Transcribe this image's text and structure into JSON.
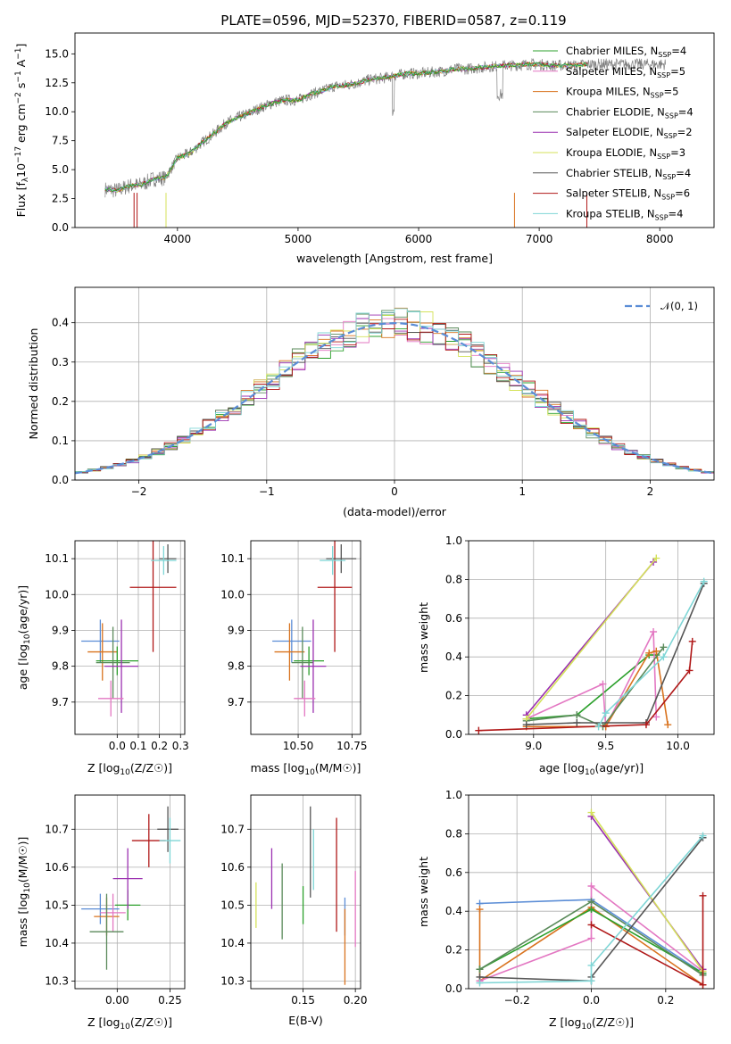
{
  "title": "PLATE=0596, MJD=52370, FIBERID=0587, z=0.119",
  "series_styles": [
    {
      "name": "Chabrier MILES, N_SSP=4",
      "short": "Chabrier MILES, N",
      "n": "=4",
      "color": "#2ca02c"
    },
    {
      "name": "Salpeter MILES, N_SSP=5",
      "short": "Salpeter MILES, N",
      "n": "=5",
      "color": "#e377c2"
    },
    {
      "name": "Kroupa MILES, N_SSP=5",
      "short": "Kroupa MILES, N",
      "n": "=5",
      "color": "#d9731f"
    },
    {
      "name": "Chabrier ELODIE, N_SSP=4",
      "short": "Chabrier ELODIE, N",
      "n": "=4",
      "color": "#5a8a5a"
    },
    {
      "name": "Salpeter ELODIE, N_SSP=2",
      "short": "Salpeter ELODIE, N",
      "n": "=2",
      "color": "#9b30b0"
    },
    {
      "name": "Kroupa ELODIE, N_SSP=3",
      "short": "Kroupa ELODIE, N",
      "n": "=3",
      "color": "#d4e25a"
    },
    {
      "name": "Chabrier STELIB, N_SSP=4",
      "short": "Chabrier STELIB, N",
      "n": "=4",
      "color": "#555555"
    },
    {
      "name": "Salpeter STELIB, N_SSP=6",
      "short": "Salpeter STELIB, N",
      "n": "=6",
      "color": "#b01818"
    },
    {
      "name": "Kroupa STELIB, N_SSP=4",
      "short": "Kroupa STELIB, N",
      "n": "=4",
      "color": "#7fd6d6"
    }
  ],
  "legend_sub": "SSP",
  "chart_data": [
    {
      "id": "spectrum",
      "type": "line",
      "xlabel": "wavelength [Angstrom, rest frame]",
      "ylabel": "Flux [f",
      "ylabel_full": "Flux [f_λ 10^-17 erg cm^-2 s^-1 A^-1]",
      "xlim": [
        3150,
        8450
      ],
      "ylim": [
        0,
        16.8
      ],
      "xticks": [
        4000,
        5000,
        6000,
        7000,
        8000
      ],
      "yticks": [
        0.0,
        2.5,
        5.0,
        7.5,
        10.0,
        12.5,
        15.0
      ],
      "x": [
        3400,
        3500,
        3600,
        3700,
        3800,
        3900,
        4000,
        4100,
        4200,
        4300,
        4400,
        4500,
        4600,
        4700,
        4800,
        4900,
        5000,
        5100,
        5200,
        5300,
        5400,
        5500,
        5600,
        5700,
        5800,
        5900,
        6000,
        6100,
        6200,
        6300,
        6400,
        6500,
        6600,
        6700,
        6800,
        6900,
        7000,
        7100,
        7200,
        7300,
        7400
      ],
      "y": [
        3.3,
        3.2,
        3.6,
        3.7,
        4.2,
        4.3,
        6.0,
        6.4,
        7.3,
        8.1,
        9.0,
        9.5,
        9.9,
        10.4,
        10.8,
        11.0,
        11.0,
        11.5,
        11.8,
        12.2,
        12.3,
        12.5,
        12.8,
        12.9,
        13.1,
        13.3,
        13.3,
        13.4,
        13.5,
        13.7,
        13.7,
        13.8,
        13.9,
        14.0,
        14.0,
        14.1,
        14.1,
        14.0,
        14.0,
        14.0,
        14.1
      ],
      "legend_loc": "upper right"
    },
    {
      "id": "residuals",
      "type": "histogram",
      "xlabel": "(data-model)/error",
      "ylabel": "Normed distribution",
      "xlim": [
        -2.5,
        2.5
      ],
      "ylim": [
        0,
        0.49
      ],
      "xticks": [
        -2,
        -1,
        0,
        1,
        2
      ],
      "yticks": [
        0.0,
        0.1,
        0.2,
        0.3,
        0.4
      ],
      "bin_width": 0.1,
      "reference": {
        "name": "N(0,1)",
        "label": "𝒩(0, 1)",
        "color": "#5b8dd6"
      },
      "legend_loc": "upper right"
    },
    {
      "id": "age_vs_Z",
      "type": "errorbar",
      "xlabel": "Z [log",
      "xlabel_full": "Z [log10(Z/Z☉)]",
      "ylabel": "age  [log",
      "ylabel_full": "age [log10(age/yr)]",
      "xlim": [
        -0.2,
        0.32
      ],
      "ylim": [
        9.61,
        10.15
      ],
      "xticks": [
        0.0,
        0.1,
        0.2,
        0.3
      ],
      "yticks": [
        9.7,
        9.8,
        9.9,
        10.0,
        10.1
      ],
      "points": [
        {
          "c": "#5b8dd6",
          "x": -0.08,
          "xe": 0.09,
          "y": 9.87,
          "ye": 0.06
        },
        {
          "c": "#d9731f",
          "x": -0.07,
          "xe": 0.07,
          "y": 9.84,
          "ye": 0.08
        },
        {
          "c": "#2ca02c",
          "x": 0.0,
          "xe": 0.1,
          "y": 9.815,
          "ye": 0.04
        },
        {
          "c": "#5a8a5a",
          "x": -0.02,
          "xe": 0.08,
          "y": 9.81,
          "ye": 0.1
        },
        {
          "c": "#9b30b0",
          "x": 0.02,
          "xe": 0.08,
          "y": 9.8,
          "ye": 0.13
        },
        {
          "c": "#e377c2",
          "x": -0.03,
          "xe": 0.06,
          "y": 9.71,
          "ye": 0.05
        },
        {
          "c": "#b01818",
          "x": 0.17,
          "xe": 0.11,
          "y": 10.02,
          "ye": 0.18
        },
        {
          "c": "#555555",
          "x": 0.24,
          "xe": 0.04,
          "y": 10.1,
          "ye": 0.04
        },
        {
          "c": "#7fd6d6",
          "x": 0.22,
          "xe": 0.06,
          "y": 10.095,
          "ye": 0.04
        }
      ]
    },
    {
      "id": "age_vs_mass",
      "type": "errorbar",
      "xlabel": "mass [log",
      "xlabel_full": "mass [log10(M/M☉)]",
      "ylabel": "",
      "xlim": [
        10.28,
        10.79
      ],
      "ylim": [
        9.61,
        10.15
      ],
      "xticks": [
        10.5,
        10.75
      ],
      "yticks": [
        9.7,
        9.8,
        9.9,
        10.0,
        10.1
      ],
      "points": [
        {
          "c": "#5b8dd6",
          "x": 10.47,
          "xe": 0.09,
          "y": 9.87,
          "ye": 0.06
        },
        {
          "c": "#d9731f",
          "x": 10.46,
          "xe": 0.07,
          "y": 9.84,
          "ye": 0.08
        },
        {
          "c": "#2ca02c",
          "x": 10.55,
          "xe": 0.07,
          "y": 9.815,
          "ye": 0.04
        },
        {
          "c": "#5a8a5a",
          "x": 10.52,
          "xe": 0.05,
          "y": 9.81,
          "ye": 0.1
        },
        {
          "c": "#9b30b0",
          "x": 10.57,
          "xe": 0.06,
          "y": 9.8,
          "ye": 0.13
        },
        {
          "c": "#e377c2",
          "x": 10.53,
          "xe": 0.05,
          "y": 9.71,
          "ye": 0.05
        },
        {
          "c": "#b01818",
          "x": 10.67,
          "xe": 0.08,
          "y": 10.02,
          "ye": 0.18
        },
        {
          "c": "#555555",
          "x": 10.7,
          "xe": 0.07,
          "y": 10.1,
          "ye": 0.04
        },
        {
          "c": "#7fd6d6",
          "x": 10.66,
          "xe": 0.06,
          "y": 10.095,
          "ye": 0.04
        }
      ]
    },
    {
      "id": "weight_vs_age",
      "type": "line",
      "xlabel": "age  [log",
      "xlabel_full": "age [log10(age/yr)]",
      "ylabel": "mass weight",
      "xlim": [
        8.55,
        10.25
      ],
      "ylim": [
        0,
        1.0
      ],
      "xticks": [
        9.0,
        9.5,
        10.0
      ],
      "yticks": [
        0.0,
        0.2,
        0.4,
        0.6,
        0.8,
        1.0
      ],
      "series": [
        {
          "c": "#2ca02c",
          "x": [
            8.95,
            9.3,
            9.8,
            9.85
          ],
          "y": [
            0.08,
            0.1,
            0.41,
            0.41
          ]
        },
        {
          "c": "#e377c2",
          "x": [
            8.95,
            9.48,
            9.5,
            9.83,
            9.85
          ],
          "y": [
            0.08,
            0.26,
            0.04,
            0.53,
            0.09
          ]
        },
        {
          "c": "#d9731f",
          "x": [
            8.95,
            9.5,
            9.8,
            9.85,
            9.93
          ],
          "y": [
            0.04,
            0.04,
            0.42,
            0.43,
            0.05
          ]
        },
        {
          "c": "#5a8a5a",
          "x": [
            8.95,
            9.3,
            9.48,
            9.9
          ],
          "y": [
            0.07,
            0.1,
            0.04,
            0.45
          ]
        },
        {
          "c": "#9b30b0",
          "x": [
            8.95,
            9.83
          ],
          "y": [
            0.1,
            0.89
          ]
        },
        {
          "c": "#d4e25a",
          "x": [
            8.95,
            9.85
          ],
          "y": [
            0.08,
            0.91
          ]
        },
        {
          "c": "#555555",
          "x": [
            8.95,
            9.3,
            9.78,
            10.18
          ],
          "y": [
            0.05,
            0.06,
            0.06,
            0.78
          ]
        },
        {
          "c": "#b01818",
          "x": [
            8.62,
            9.78,
            10.08,
            10.1
          ],
          "y": [
            0.02,
            0.05,
            0.33,
            0.48
          ]
        },
        {
          "c": "#7fd6d6",
          "x": [
            9.45,
            9.5,
            9.9,
            10.18
          ],
          "y": [
            0.04,
            0.11,
            0.4,
            0.79
          ]
        }
      ]
    },
    {
      "id": "mass_vs_Z",
      "type": "errorbar",
      "xlabel": "Z [log",
      "xlabel_full": "Z [log10(Z/Z☉)]",
      "ylabel": "mass [log",
      "ylabel_full": "mass [log10(M/M☉)]",
      "xlim": [
        -0.2,
        0.32
      ],
      "ylim": [
        10.28,
        10.79
      ],
      "xticks": [
        0.0,
        0.25
      ],
      "yticks": [
        10.3,
        10.4,
        10.5,
        10.6,
        10.7
      ],
      "points": [
        {
          "c": "#5b8dd6",
          "x": -0.08,
          "xe": 0.09,
          "y": 10.49,
          "ye": 0.04
        },
        {
          "c": "#d9731f",
          "x": -0.05,
          "xe": 0.06,
          "y": 10.47,
          "ye": 0.05
        },
        {
          "c": "#e377c2",
          "x": -0.02,
          "xe": 0.06,
          "y": 10.48,
          "ye": 0.05
        },
        {
          "c": "#2ca02c",
          "x": 0.05,
          "xe": 0.06,
          "y": 10.5,
          "ye": 0.04
        },
        {
          "c": "#5a8a5a",
          "x": -0.05,
          "xe": 0.08,
          "y": 10.43,
          "ye": 0.1
        },
        {
          "c": "#9b30b0",
          "x": 0.05,
          "xe": 0.07,
          "y": 10.57,
          "ye": 0.08
        },
        {
          "c": "#b01818",
          "x": 0.15,
          "xe": 0.08,
          "y": 10.67,
          "ye": 0.07
        },
        {
          "c": "#555555",
          "x": 0.24,
          "xe": 0.05,
          "y": 10.7,
          "ye": 0.06
        },
        {
          "c": "#7fd6d6",
          "x": 0.25,
          "xe": 0.05,
          "y": 10.67,
          "ye": 0.06
        }
      ]
    },
    {
      "id": "mass_vs_EBV",
      "type": "errorbar",
      "xlabel": "E(B-V)",
      "ylabel": "",
      "xlim": [
        0.1,
        0.205
      ],
      "ylim": [
        10.28,
        10.79
      ],
      "xticks": [
        0.15,
        0.2
      ],
      "yticks": [
        10.3,
        10.4,
        10.5,
        10.6,
        10.7
      ],
      "points": [
        {
          "c": "#d4e25a",
          "x": 0.105,
          "xe": 0,
          "y": 10.5,
          "ye": 0.06
        },
        {
          "c": "#9b30b0",
          "x": 0.12,
          "xe": 0,
          "y": 10.57,
          "ye": 0.08
        },
        {
          "c": "#5a8a5a",
          "x": 0.13,
          "xe": 0,
          "y": 10.51,
          "ye": 0.1
        },
        {
          "c": "#2ca02c",
          "x": 0.15,
          "xe": 0,
          "y": 10.5,
          "ye": 0.05
        },
        {
          "c": "#555555",
          "x": 0.157,
          "xe": 0,
          "y": 10.64,
          "ye": 0.12
        },
        {
          "c": "#7fd6d6",
          "x": 0.16,
          "xe": 0,
          "y": 10.62,
          "ye": 0.08
        },
        {
          "c": "#b01818",
          "x": 0.182,
          "xe": 0,
          "y": 10.58,
          "ye": 0.15
        },
        {
          "c": "#5b8dd6",
          "x": 0.19,
          "xe": 0,
          "y": 10.47,
          "ye": 0.05
        },
        {
          "c": "#d9731f",
          "x": 0.19,
          "xe": 0,
          "y": 10.39,
          "ye": 0.1
        },
        {
          "c": "#e377c2",
          "x": 0.2,
          "xe": 0,
          "y": 10.49,
          "ye": 0.1
        }
      ]
    },
    {
      "id": "weight_vs_Z",
      "type": "line",
      "xlabel": "Z [log",
      "xlabel_full": "Z [log10(Z/Z☉)]",
      "ylabel": "mass weight",
      "xlim": [
        -0.33,
        0.33
      ],
      "ylim": [
        0,
        1.0
      ],
      "xticks": [
        -0.2,
        0.0,
        0.2
      ],
      "yticks": [
        0.0,
        0.2,
        0.4,
        0.6,
        0.8,
        1.0
      ],
      "series": [
        {
          "c": "#5b8dd6",
          "x": [
            -0.3,
            0.0,
            0.3
          ],
          "y": [
            0.44,
            0.46,
            0.08
          ]
        },
        {
          "c": "#d9731f",
          "x": [
            -0.3,
            -0.3,
            0.0,
            0.3
          ],
          "y": [
            0.41,
            0.04,
            0.42,
            0.02
          ]
        },
        {
          "c": "#e377c2",
          "x": [
            -0.3,
            0.0,
            0.0,
            0.3
          ],
          "y": [
            0.04,
            0.26,
            0.53,
            0.09
          ]
        },
        {
          "c": "#2ca02c",
          "x": [
            -0.3,
            0.0,
            0.3
          ],
          "y": [
            0.1,
            0.41,
            0.08
          ]
        },
        {
          "c": "#5a8a5a",
          "x": [
            -0.3,
            0.0,
            0.3
          ],
          "y": [
            0.1,
            0.45,
            0.07
          ]
        },
        {
          "c": "#9b30b0",
          "x": [
            0.0,
            0.3
          ],
          "y": [
            0.89,
            0.1
          ]
        },
        {
          "c": "#d4e25a",
          "x": [
            0.0,
            0.3
          ],
          "y": [
            0.91,
            0.09
          ]
        },
        {
          "c": "#555555",
          "x": [
            -0.3,
            0.0,
            0.0,
            0.3
          ],
          "y": [
            0.06,
            0.04,
            0.06,
            0.78
          ]
        },
        {
          "c": "#b01818",
          "x": [
            0.0,
            0.3,
            0.3
          ],
          "y": [
            0.33,
            0.02,
            0.48
          ]
        },
        {
          "c": "#7fd6d6",
          "x": [
            -0.3,
            0.0,
            0.0,
            0.3
          ],
          "y": [
            0.03,
            0.04,
            0.12,
            0.79
          ]
        }
      ]
    }
  ]
}
